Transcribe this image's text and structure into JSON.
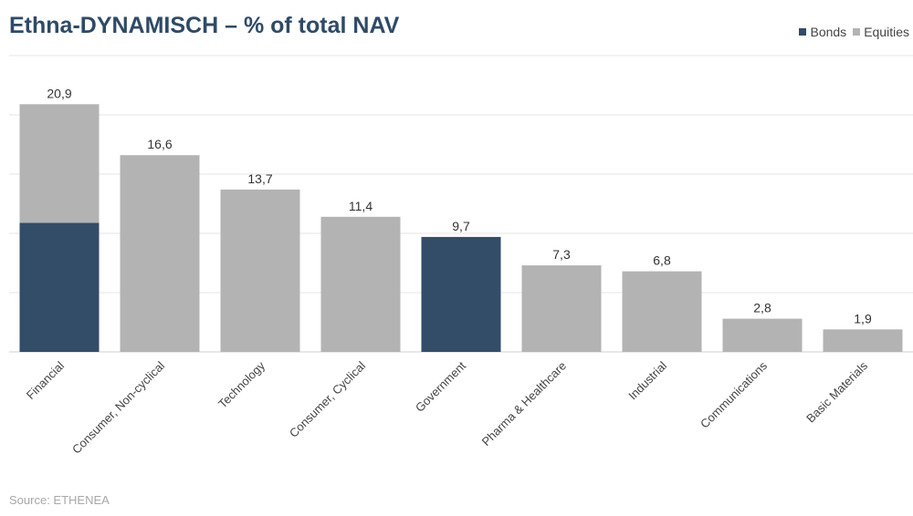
{
  "title": "Ethna-DYNAMISCH – % of total NAV",
  "source": "Source: ETHENEA",
  "legend": [
    {
      "label": "Bonds",
      "color": "#334c68"
    },
    {
      "label": "Equities",
      "color": "#b3b3b3"
    }
  ],
  "chart_data": {
    "type": "bar",
    "stacked": true,
    "categories": [
      "Financial",
      "Consumer, Non-cyclical",
      "Technology",
      "Consumer, Cyclical",
      "Government",
      "Pharma & Healthcare",
      "Industrial",
      "Communications",
      "Basic Materials"
    ],
    "series": [
      {
        "name": "Bonds",
        "color": "#334c68",
        "values": [
          10.9,
          0,
          0,
          0,
          9.7,
          0,
          0,
          0,
          0
        ]
      },
      {
        "name": "Equities",
        "color": "#b3b3b3",
        "values": [
          10.0,
          16.6,
          13.7,
          11.4,
          0,
          7.3,
          6.8,
          2.8,
          1.9
        ]
      }
    ],
    "totals": [
      20.9,
      16.6,
      13.7,
      11.4,
      9.7,
      7.3,
      6.8,
      2.8,
      1.9
    ],
    "total_labels": [
      "20,9",
      "16,6",
      "13,7",
      "11,4",
      "9,7",
      "7,3",
      "6,8",
      "2,8",
      "1,9"
    ],
    "ylim": [
      0,
      25
    ],
    "grid": true,
    "legend_position": "top-right"
  }
}
